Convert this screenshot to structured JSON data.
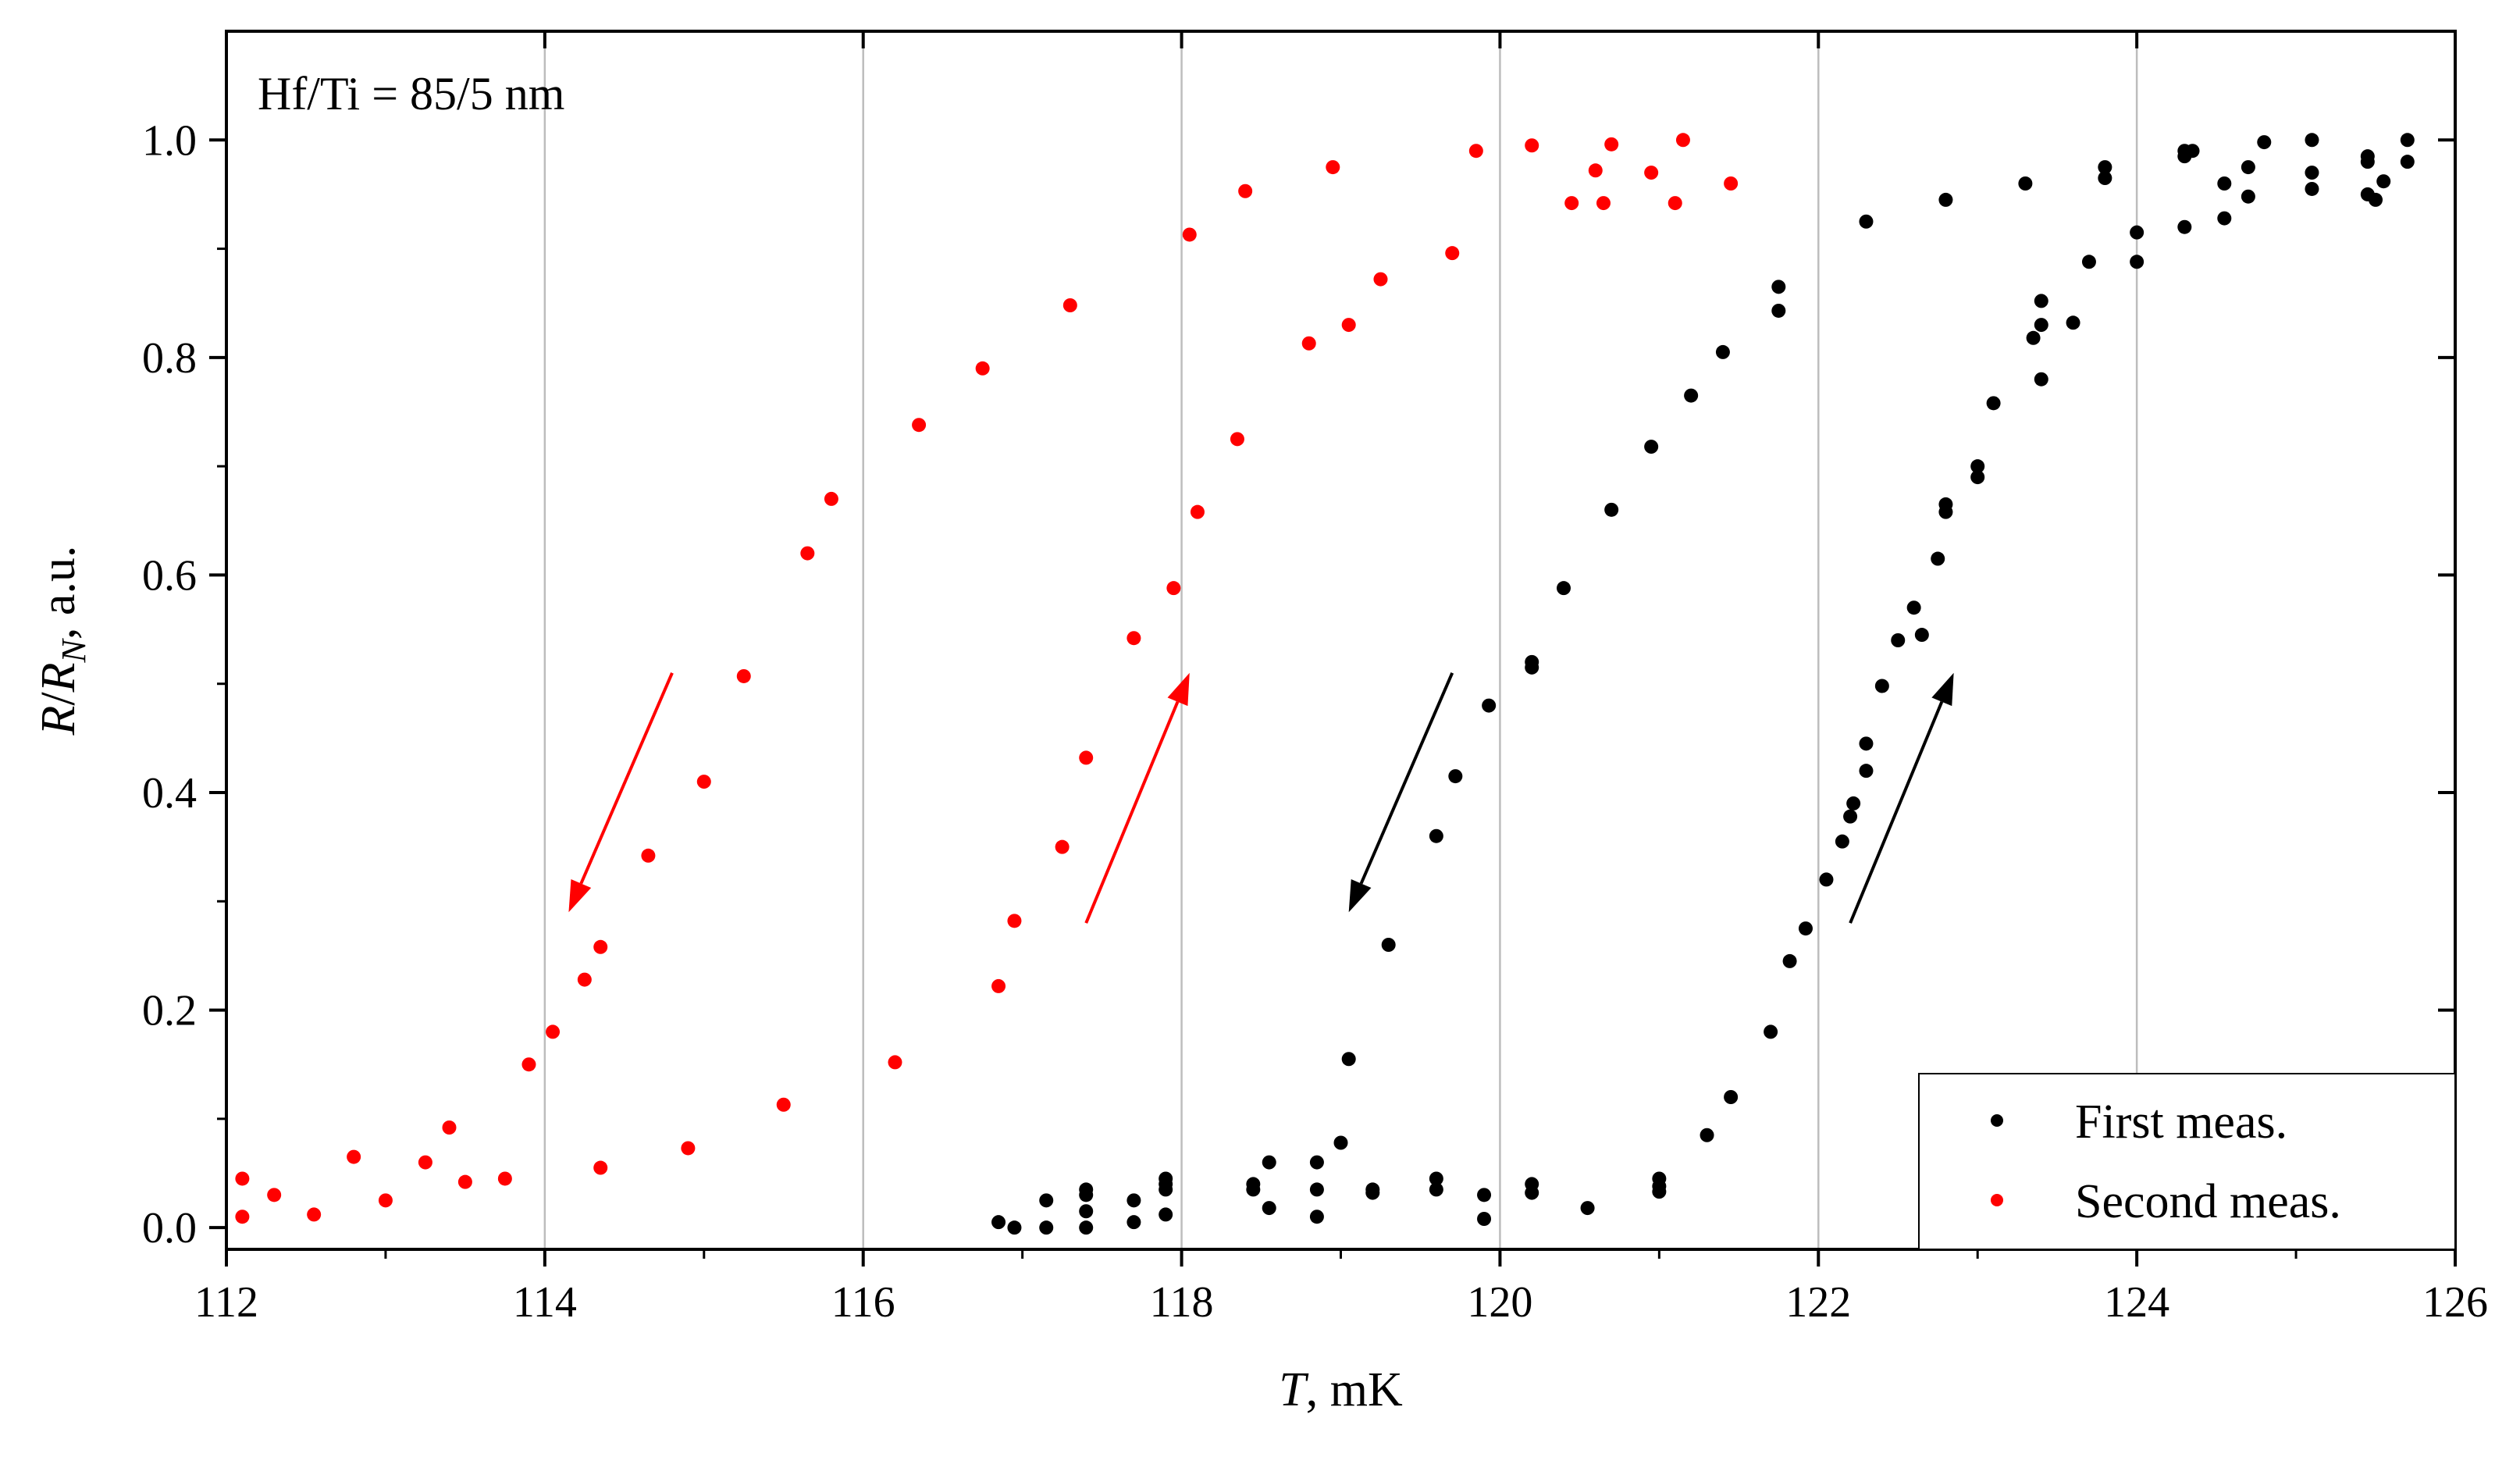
{
  "chart_data": {
    "type": "scatter",
    "title": "",
    "annotation": "Hf/Ti = 85/5 nm",
    "xlabel": {
      "var": "T",
      "rest": ", mK"
    },
    "ylabel": {
      "var1": "R",
      "slash": "/",
      "var2": "R",
      "sub": "N",
      "rest": ", a.u."
    },
    "xlim": [
      112,
      126
    ],
    "ylim": [
      -0.02,
      1.1
    ],
    "xticks": [
      112,
      114,
      116,
      118,
      120,
      122,
      124,
      126
    ],
    "yticks": [
      0.0,
      0.2,
      0.4,
      0.6,
      0.8,
      1.0
    ],
    "vgrid": [
      114,
      116,
      118,
      120,
      122,
      124
    ],
    "legend_position": "bottom-right",
    "series": [
      {
        "name": "First meas.",
        "color": "#000000",
        "points": [
          [
            116.85,
            0.005
          ],
          [
            116.95,
            0.0
          ],
          [
            117.15,
            0.025
          ],
          [
            117.15,
            0.0
          ],
          [
            117.4,
            0.035
          ],
          [
            117.4,
            0.03
          ],
          [
            117.4,
            0.015
          ],
          [
            117.4,
            0.0
          ],
          [
            117.7,
            0.025
          ],
          [
            117.7,
            0.005
          ],
          [
            117.9,
            0.04
          ],
          [
            117.9,
            0.045
          ],
          [
            117.9,
            0.035
          ],
          [
            117.9,
            0.012
          ],
          [
            118.45,
            0.04
          ],
          [
            118.45,
            0.035
          ],
          [
            118.55,
            0.06
          ],
          [
            118.55,
            0.018
          ],
          [
            118.85,
            0.06
          ],
          [
            118.85,
            0.035
          ],
          [
            118.85,
            0.01
          ],
          [
            119.0,
            0.078
          ],
          [
            119.05,
            0.155
          ],
          [
            119.2,
            0.035
          ],
          [
            119.2,
            0.032
          ],
          [
            119.3,
            0.26
          ],
          [
            119.6,
            0.045
          ],
          [
            119.6,
            0.035
          ],
          [
            119.6,
            0.36
          ],
          [
            119.72,
            0.415
          ],
          [
            119.9,
            0.03
          ],
          [
            119.9,
            0.008
          ],
          [
            119.93,
            0.48
          ],
          [
            120.2,
            0.52
          ],
          [
            120.2,
            0.515
          ],
          [
            120.2,
            0.04
          ],
          [
            120.2,
            0.032
          ],
          [
            120.4,
            0.588
          ],
          [
            120.55,
            0.018
          ],
          [
            120.7,
            0.66
          ],
          [
            120.95,
            0.718
          ],
          [
            121.0,
            0.045
          ],
          [
            121.0,
            0.038
          ],
          [
            121.0,
            0.033
          ],
          [
            121.2,
            0.765
          ],
          [
            121.3,
            0.085
          ],
          [
            121.4,
            0.805
          ],
          [
            121.45,
            0.12
          ],
          [
            121.7,
            0.18
          ],
          [
            121.75,
            0.865
          ],
          [
            121.75,
            0.843
          ],
          [
            121.82,
            0.245
          ],
          [
            121.92,
            0.275
          ],
          [
            122.05,
            0.32
          ],
          [
            122.15,
            0.355
          ],
          [
            122.2,
            0.378
          ],
          [
            122.22,
            0.39
          ],
          [
            122.3,
            0.42
          ],
          [
            122.3,
            0.445
          ],
          [
            122.3,
            0.925
          ],
          [
            122.4,
            0.498
          ],
          [
            122.5,
            0.54
          ],
          [
            122.6,
            0.57
          ],
          [
            122.65,
            0.545
          ],
          [
            122.75,
            0.615
          ],
          [
            122.8,
            0.945
          ],
          [
            122.8,
            0.665
          ],
          [
            122.8,
            0.658
          ],
          [
            123.0,
            0.69
          ],
          [
            123.0,
            0.7
          ],
          [
            123.1,
            0.758
          ],
          [
            123.3,
            0.96
          ],
          [
            123.35,
            0.818
          ],
          [
            123.4,
            0.852
          ],
          [
            123.4,
            0.83
          ],
          [
            123.4,
            0.78
          ],
          [
            123.6,
            0.832
          ],
          [
            123.7,
            0.888
          ],
          [
            123.8,
            0.975
          ],
          [
            123.8,
            0.965
          ],
          [
            124.0,
            0.915
          ],
          [
            124.0,
            0.888
          ],
          [
            124.3,
            0.99
          ],
          [
            124.3,
            0.985
          ],
          [
            124.3,
            0.92
          ],
          [
            124.35,
            0.99
          ],
          [
            124.55,
            0.96
          ],
          [
            124.55,
            0.928
          ],
          [
            124.7,
            0.975
          ],
          [
            124.7,
            0.948
          ],
          [
            124.8,
            0.998
          ],
          [
            125.1,
            1.0
          ],
          [
            125.1,
            0.97
          ],
          [
            125.1,
            0.955
          ],
          [
            125.45,
            0.985
          ],
          [
            125.45,
            0.98
          ],
          [
            125.45,
            0.95
          ],
          [
            125.5,
            0.945
          ],
          [
            125.55,
            0.962
          ],
          [
            125.7,
            1.0
          ],
          [
            125.7,
            0.98
          ]
        ]
      },
      {
        "name": "Second meas.",
        "color": "#ff0000",
        "points": [
          [
            112.1,
            0.045
          ],
          [
            112.1,
            0.01
          ],
          [
            112.3,
            0.03
          ],
          [
            112.55,
            0.012
          ],
          [
            112.8,
            0.065
          ],
          [
            113.0,
            0.025
          ],
          [
            113.25,
            0.06
          ],
          [
            113.4,
            0.092
          ],
          [
            113.5,
            0.042
          ],
          [
            113.75,
            0.045
          ],
          [
            113.9,
            0.15
          ],
          [
            114.05,
            0.18
          ],
          [
            114.25,
            0.228
          ],
          [
            114.35,
            0.258
          ],
          [
            114.35,
            0.055
          ],
          [
            114.65,
            0.342
          ],
          [
            114.9,
            0.073
          ],
          [
            115.0,
            0.41
          ],
          [
            115.25,
            0.507
          ],
          [
            115.5,
            0.113
          ],
          [
            115.65,
            0.62
          ],
          [
            115.8,
            0.67
          ],
          [
            116.2,
            0.152
          ],
          [
            116.35,
            0.738
          ],
          [
            116.75,
            0.79
          ],
          [
            116.85,
            0.222
          ],
          [
            116.95,
            0.282
          ],
          [
            117.25,
            0.35
          ],
          [
            117.3,
            0.848
          ],
          [
            117.4,
            0.432
          ],
          [
            117.7,
            0.542
          ],
          [
            117.95,
            0.588
          ],
          [
            118.05,
            0.913
          ],
          [
            118.1,
            0.658
          ],
          [
            118.35,
            0.725
          ],
          [
            118.4,
            0.953
          ],
          [
            118.8,
            0.813
          ],
          [
            118.95,
            0.975
          ],
          [
            119.05,
            0.83
          ],
          [
            119.25,
            0.872
          ],
          [
            119.7,
            0.896
          ],
          [
            119.85,
            0.99
          ],
          [
            120.2,
            0.995
          ],
          [
            120.45,
            0.942
          ],
          [
            120.6,
            0.972
          ],
          [
            120.65,
            0.942
          ],
          [
            120.7,
            0.996
          ],
          [
            120.95,
            0.97
          ],
          [
            121.1,
            0.942
          ],
          [
            121.15,
            1.0
          ],
          [
            121.45,
            0.96
          ]
        ]
      }
    ],
    "arrows": [
      {
        "color": "#ff0000",
        "from": [
          114.8,
          0.51
        ],
        "to": [
          114.15,
          0.29
        ]
      },
      {
        "color": "#ff0000",
        "from": [
          117.4,
          0.28
        ],
        "to": [
          118.05,
          0.51
        ]
      },
      {
        "color": "#000000",
        "from": [
          119.7,
          0.51
        ],
        "to": [
          119.05,
          0.29
        ]
      },
      {
        "color": "#000000",
        "from": [
          122.2,
          0.28
        ],
        "to": [
          122.85,
          0.51
        ]
      }
    ]
  }
}
